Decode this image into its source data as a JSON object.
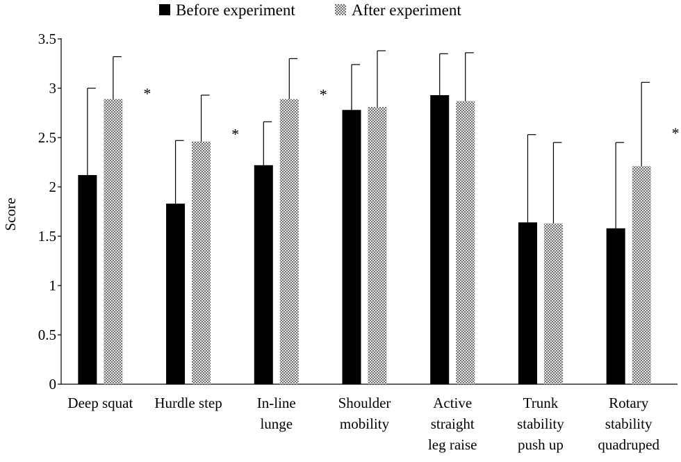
{
  "chart_data": {
    "type": "bar",
    "title": "",
    "xlabel": "",
    "ylabel": "Score",
    "ylim": [
      0,
      3.5
    ],
    "yticks": [
      0,
      0.5,
      1,
      1.5,
      2,
      2.5,
      3,
      3.5
    ],
    "ytick_labels": [
      "0",
      "0.5",
      "1",
      "1.5",
      "2",
      "2.5",
      "3",
      "3.5"
    ],
    "categories": [
      [
        "Deep squat"
      ],
      [
        "Hurdle step"
      ],
      [
        "In-line",
        "lunge"
      ],
      [
        "Shoulder",
        "mobility"
      ],
      [
        "Active",
        "straight",
        "leg raise"
      ],
      [
        "Trunk",
        "stability",
        "push up"
      ],
      [
        "Rotary",
        "stability",
        "quadruped"
      ]
    ],
    "series": [
      {
        "name": "Before experiment",
        "pattern": "solid",
        "values": [
          2.12,
          1.83,
          2.22,
          2.78,
          2.93,
          1.64,
          1.58
        ],
        "errors": [
          0.88,
          0.64,
          0.44,
          0.46,
          0.42,
          0.89,
          0.87
        ]
      },
      {
        "name": "After experiment",
        "pattern": "checker",
        "values": [
          2.89,
          2.46,
          2.89,
          2.81,
          2.87,
          1.63,
          2.21
        ],
        "errors": [
          0.43,
          0.47,
          0.41,
          0.57,
          0.49,
          0.82,
          0.85
        ]
      }
    ],
    "significance": [
      {
        "category_index": 0,
        "label": "*"
      },
      {
        "category_index": 1,
        "label": "*"
      },
      {
        "category_index": 2,
        "label": "*"
      },
      {
        "category_index": 6,
        "label": "*"
      }
    ],
    "colors": {
      "before": "#000000",
      "after_dark": "#6e6e6e",
      "after_light": "#ececec",
      "axis": "#000000"
    }
  }
}
